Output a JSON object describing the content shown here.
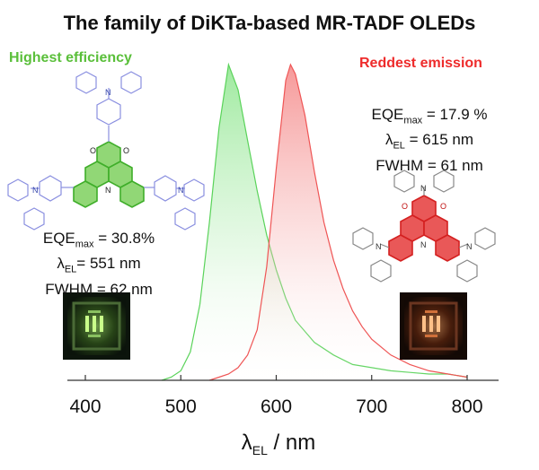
{
  "title": "The family of DiKTa-based MR-TADF OLEDs",
  "left_emitter": {
    "heading": "Highest efficiency",
    "color": "#5abf3a",
    "eqe_label": "EQE",
    "eqe_sub": "max",
    "eqe_value": " = 30.8%",
    "lambda_label": "λ",
    "lambda_sub": "EL",
    "lambda_value": "= 551 nm",
    "fwhm": "FWHM = 62 nm",
    "molecule_atoms": [
      "N",
      "N",
      "N",
      "O",
      "O",
      "N"
    ]
  },
  "right_emitter": {
    "heading": "Reddest emission",
    "color": "#ee2b2b",
    "eqe_label": "EQE",
    "eqe_sub": "max",
    "eqe_value": " = 17.9 %",
    "lambda_label": "λ",
    "lambda_sub": "EL",
    "lambda_value": " = 615 nm",
    "fwhm": "FWHM = 61 nm",
    "molecule_atoms": [
      "N",
      "N",
      "N",
      "O",
      "O",
      "N"
    ]
  },
  "axis": {
    "x_title_main": "λ",
    "x_title_sub": "EL",
    "x_title_unit": " / nm"
  },
  "chart_data": {
    "type": "area",
    "x_ticks": [
      400,
      500,
      600,
      700,
      800
    ],
    "x_range": [
      400,
      850
    ],
    "y_range": [
      0,
      1.0
    ],
    "grid": false,
    "series": [
      {
        "color": "#5ad35a",
        "peak_nm": 551,
        "fwhm_nm": 62,
        "x": [
          480,
          490,
          500,
          510,
          520,
          530,
          540,
          550,
          560,
          570,
          580,
          590,
          600,
          610,
          620,
          640,
          660,
          680,
          700,
          720,
          740,
          760,
          780,
          800
        ],
        "y": [
          0.0,
          0.01,
          0.03,
          0.09,
          0.24,
          0.5,
          0.8,
          1.0,
          0.92,
          0.76,
          0.6,
          0.46,
          0.35,
          0.26,
          0.19,
          0.12,
          0.08,
          0.05,
          0.04,
          0.03,
          0.025,
          0.02,
          0.02,
          0.01
        ]
      },
      {
        "color": "#ef5555",
        "peak_nm": 615,
        "fwhm_nm": 61,
        "x": [
          530,
          540,
          550,
          560,
          570,
          580,
          590,
          600,
          610,
          615,
          620,
          630,
          640,
          650,
          660,
          670,
          680,
          690,
          700,
          720,
          740,
          760,
          780,
          800
        ],
        "y": [
          0.0,
          0.01,
          0.02,
          0.04,
          0.08,
          0.16,
          0.36,
          0.67,
          0.95,
          1.0,
          0.97,
          0.84,
          0.66,
          0.5,
          0.38,
          0.29,
          0.22,
          0.17,
          0.13,
          0.08,
          0.05,
          0.03,
          0.02,
          0.01
        ]
      }
    ]
  }
}
